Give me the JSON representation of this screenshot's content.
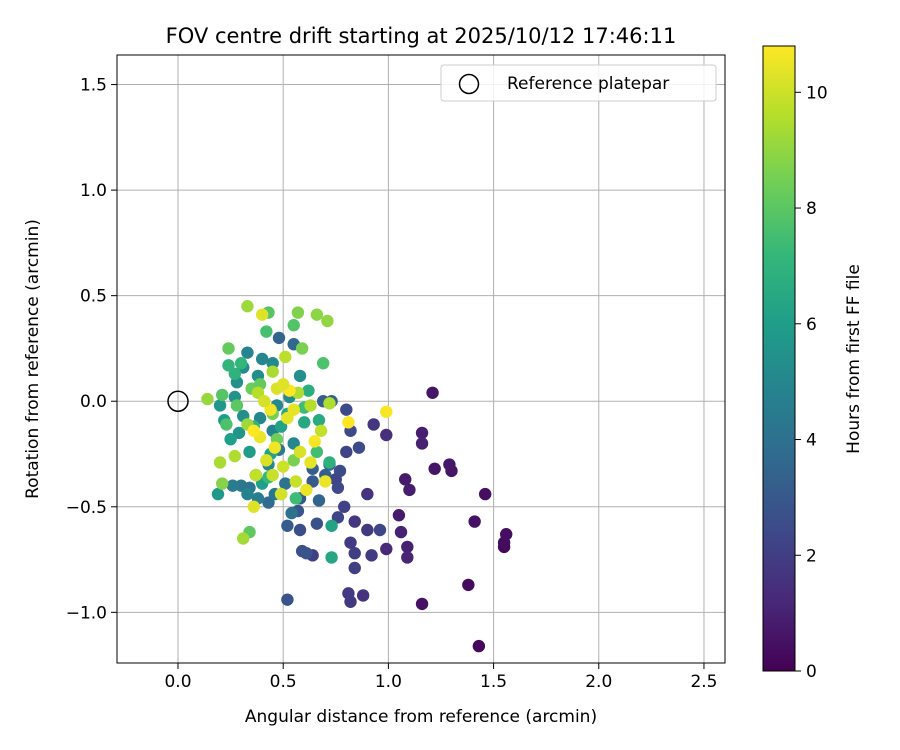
{
  "chart_data": {
    "type": "scatter",
    "title": "FOV centre drift starting at 2025/10/12 17:46:11",
    "xlabel": "Angular distance from reference (arcmin)",
    "ylabel": "Rotation from reference (arcmin)",
    "xlim": [
      -0.29,
      2.6
    ],
    "ylim": [
      -1.24,
      1.64
    ],
    "xticks": [
      0.0,
      0.5,
      1.0,
      1.5,
      2.0,
      2.5
    ],
    "xtick_labels": [
      "0.0",
      "0.5",
      "1.0",
      "1.5",
      "2.0",
      "2.5"
    ],
    "yticks": [
      -1.0,
      -0.5,
      0.0,
      0.5,
      1.0,
      1.5
    ],
    "ytick_labels": [
      "−1.0",
      "−0.5",
      "0.0",
      "0.5",
      "1.0",
      "1.5"
    ],
    "grid": true,
    "legend": {
      "position": "top-right",
      "label": "Reference platepar"
    },
    "reference_point": {
      "x": 0.0,
      "y": 0.0
    },
    "colorbar": {
      "label": "Hours from first FF file",
      "cmap": "viridis",
      "range": [
        0,
        10.8
      ],
      "ticks": [
        0,
        2,
        4,
        6,
        8,
        10
      ],
      "tick_labels": [
        "0",
        "2",
        "4",
        "6",
        "8",
        "10"
      ]
    },
    "colormap_stops": [
      "#440154",
      "#482878",
      "#3e4989",
      "#31688e",
      "#26828e",
      "#1f9e89",
      "#35b779",
      "#6ece58",
      "#b5de2b",
      "#fde725"
    ],
    "points": [
      [
        1.43,
        -1.16,
        0.2
      ],
      [
        1.38,
        -0.87,
        0.3
      ],
      [
        1.16,
        -0.96,
        0.5
      ],
      [
        1.55,
        -0.69,
        0.2
      ],
      [
        1.55,
        -0.67,
        0.3
      ],
      [
        1.56,
        -0.63,
        0.4
      ],
      [
        1.41,
        -0.57,
        0.5
      ],
      [
        1.46,
        -0.44,
        0.4
      ],
      [
        1.3,
        -0.33,
        0.6
      ],
      [
        1.29,
        -0.3,
        0.7
      ],
      [
        1.22,
        -0.32,
        0.6
      ],
      [
        1.21,
        0.04,
        0.6
      ],
      [
        1.16,
        -0.15,
        0.9
      ],
      [
        1.16,
        -0.2,
        1.0
      ],
      [
        1.08,
        -0.37,
        0.8
      ],
      [
        1.1,
        -0.42,
        0.9
      ],
      [
        1.05,
        -0.54,
        0.8
      ],
      [
        1.06,
        -0.62,
        1.0
      ],
      [
        1.09,
        -0.69,
        1.0
      ],
      [
        1.09,
        -0.74,
        1.1
      ],
      [
        0.99,
        -0.7,
        1.3
      ],
      [
        0.99,
        -0.16,
        1.5
      ],
      [
        0.93,
        -0.11,
        1.7
      ],
      [
        0.9,
        -0.44,
        1.6
      ],
      [
        0.88,
        -0.92,
        1.6
      ],
      [
        0.82,
        -0.95,
        1.8
      ],
      [
        0.81,
        -0.91,
        1.9
      ],
      [
        0.84,
        -0.79,
        2.0
      ],
      [
        0.84,
        -0.72,
        2.0
      ],
      [
        0.82,
        -0.67,
        1.9
      ],
      [
        0.92,
        -0.73,
        1.9
      ],
      [
        0.9,
        -0.61,
        1.8
      ],
      [
        0.96,
        -0.61,
        2.3
      ],
      [
        0.84,
        -0.57,
        1.7
      ],
      [
        0.79,
        -0.5,
        2.1
      ],
      [
        0.76,
        -0.55,
        2.3
      ],
      [
        0.8,
        -0.04,
        2.4
      ],
      [
        0.82,
        -0.14,
        2.4
      ],
      [
        0.8,
        -0.24,
        2.2
      ],
      [
        0.86,
        -0.22,
        2.5
      ],
      [
        0.77,
        -0.33,
        2.5
      ],
      [
        0.75,
        -0.37,
        2.3
      ],
      [
        0.76,
        -0.41,
        2.4
      ],
      [
        0.64,
        -0.73,
        2.0
      ],
      [
        0.66,
        -0.58,
        2.7
      ],
      [
        0.59,
        -0.71,
        2.7
      ],
      [
        0.58,
        -0.61,
        2.6
      ],
      [
        0.52,
        -0.94,
        2.8
      ],
      [
        0.61,
        -0.72,
        2.8
      ],
      [
        0.57,
        -0.52,
        2.9
      ],
      [
        0.52,
        -0.59,
        3.1
      ],
      [
        0.58,
        -0.46,
        3.0
      ],
      [
        0.64,
        -0.38,
        3.1
      ],
      [
        0.64,
        -0.32,
        3.3
      ],
      [
        0.7,
        -0.35,
        3.2
      ],
      [
        0.67,
        -0.47,
        3.5
      ],
      [
        0.72,
        -0.3,
        3.6
      ],
      [
        0.69,
        0.0,
        3.2
      ],
      [
        0.73,
        0.0,
        3.4
      ],
      [
        0.48,
        0.3,
        3.5
      ],
      [
        0.55,
        0.27,
        3.6
      ],
      [
        0.43,
        -0.48,
        3.8
      ],
      [
        0.54,
        -0.53,
        4.0
      ],
      [
        0.46,
        -0.44,
        4.2
      ],
      [
        0.51,
        -0.39,
        4.1
      ],
      [
        0.3,
        -0.4,
        4.3
      ],
      [
        0.34,
        -0.41,
        4.2
      ],
      [
        0.38,
        -0.46,
        4.6
      ],
      [
        0.33,
        -0.44,
        4.8
      ],
      [
        0.26,
        -0.4,
        4.5
      ],
      [
        0.37,
        -0.35,
        4.7
      ],
      [
        0.43,
        -0.3,
        4.9
      ],
      [
        0.48,
        -0.23,
        4.5
      ],
      [
        0.55,
        -0.2,
        5.0
      ],
      [
        0.45,
        -0.14,
        4.8
      ],
      [
        0.39,
        -0.08,
        5.0
      ],
      [
        0.47,
        -0.02,
        5.1
      ],
      [
        0.53,
        0.02,
        5.2
      ],
      [
        0.58,
        0.12,
        5.3
      ],
      [
        0.45,
        0.18,
        5.1
      ],
      [
        0.4,
        0.2,
        5.0
      ],
      [
        0.33,
        0.23,
        4.9
      ],
      [
        0.38,
        0.12,
        5.3
      ],
      [
        0.28,
        0.09,
        5.4
      ],
      [
        0.31,
        0.16,
        5.2
      ],
      [
        0.27,
        0.02,
        5.5
      ],
      [
        0.31,
        -0.07,
        5.4
      ],
      [
        0.29,
        -0.15,
        5.6
      ],
      [
        0.19,
        -0.44,
        5.8
      ],
      [
        0.2,
        -0.02,
        5.7
      ],
      [
        0.22,
        -0.09,
        5.9
      ],
      [
        0.25,
        -0.18,
        6.0
      ],
      [
        0.34,
        -0.24,
        5.9
      ],
      [
        0.4,
        -0.39,
        6.1
      ],
      [
        0.44,
        -0.25,
        6.3
      ],
      [
        0.49,
        -0.12,
        6.2
      ],
      [
        0.52,
        -0.06,
        6.4
      ],
      [
        0.6,
        -0.1,
        6.5
      ],
      [
        0.67,
        -0.09,
        6.6
      ],
      [
        0.73,
        -0.59,
        6.2
      ],
      [
        0.73,
        -0.74,
        6.4
      ],
      [
        0.72,
        -0.29,
        6.8
      ],
      [
        0.62,
        0.05,
        6.7
      ],
      [
        0.27,
        0.13,
        6.9
      ],
      [
        0.24,
        0.17,
        7.0
      ],
      [
        0.3,
        0.18,
        7.1
      ],
      [
        0.36,
        -0.12,
        7.0
      ],
      [
        0.43,
        -0.36,
        7.2
      ],
      [
        0.49,
        -0.44,
        7.3
      ],
      [
        0.56,
        -0.46,
        7.4
      ],
      [
        0.66,
        -0.24,
        7.5
      ],
      [
        0.6,
        -0.03,
        7.4
      ],
      [
        0.69,
        0.18,
        7.7
      ],
      [
        0.55,
        0.36,
        7.8
      ],
      [
        0.42,
        0.33,
        7.6
      ],
      [
        0.43,
        0.42,
        7.9
      ],
      [
        0.21,
        0.03,
        7.9
      ],
      [
        0.23,
        -0.11,
        7.7
      ],
      [
        0.28,
        -0.02,
        8.0
      ],
      [
        0.34,
        -0.62,
        8.1
      ],
      [
        0.24,
        0.25,
        8.2
      ],
      [
        0.35,
        0.06,
        8.3
      ],
      [
        0.39,
        0.08,
        8.2
      ],
      [
        0.45,
        -0.06,
        8.5
      ],
      [
        0.47,
        -0.18,
        8.4
      ],
      [
        0.55,
        -0.28,
        8.6
      ],
      [
        0.59,
        0.25,
        8.6
      ],
      [
        0.66,
        0.41,
        8.9
      ],
      [
        0.71,
        0.38,
        9.0
      ],
      [
        0.57,
        0.42,
        8.7
      ],
      [
        0.33,
        0.45,
        9.2
      ],
      [
        0.21,
        -0.39,
        8.8
      ],
      [
        0.31,
        -0.65,
        9.3
      ],
      [
        0.2,
        -0.29,
        9.4
      ],
      [
        0.14,
        0.01,
        9.1
      ],
      [
        0.27,
        -0.26,
        9.5
      ],
      [
        0.33,
        -0.11,
        9.2
      ],
      [
        0.38,
        0.04,
        9.6
      ],
      [
        0.45,
        0.14,
        9.4
      ],
      [
        0.51,
        0.21,
        9.7
      ],
      [
        0.57,
        0.04,
        9.5
      ],
      [
        0.63,
        -0.02,
        9.6
      ],
      [
        0.68,
        -0.14,
        9.8
      ],
      [
        0.72,
        -0.01,
        9.5
      ],
      [
        0.56,
        -0.38,
        9.9
      ],
      [
        0.49,
        -0.44,
        10.1
      ],
      [
        0.42,
        -0.28,
        10.2
      ],
      [
        0.37,
        -0.35,
        9.8
      ],
      [
        0.4,
        0.41,
        10.3
      ],
      [
        0.47,
        0.06,
        10.2
      ],
      [
        0.52,
        -0.08,
        10.4
      ],
      [
        0.46,
        -0.22,
        10.6
      ],
      [
        0.39,
        -0.17,
        10.5
      ],
      [
        0.58,
        -0.24,
        10.6
      ],
      [
        0.65,
        -0.19,
        10.7
      ],
      [
        0.7,
        -0.38,
        10.5
      ],
      [
        0.81,
        -0.1,
        10.8
      ],
      [
        0.99,
        -0.05,
        10.7
      ],
      [
        0.36,
        -0.14,
        10.8
      ],
      [
        0.44,
        -0.04,
        10.6
      ],
      [
        0.53,
        0.05,
        10.8
      ],
      [
        0.36,
        -0.5,
        10.3
      ],
      [
        0.61,
        -0.42,
        10.5
      ],
      [
        0.41,
        0.0,
        10.1
      ],
      [
        0.5,
        -0.31,
        10.0
      ],
      [
        0.55,
        -0.04,
        10.4
      ],
      [
        0.58,
        -0.24,
        10.2
      ],
      [
        0.45,
        -0.35,
        9.9
      ],
      [
        0.63,
        -0.29,
        10.4
      ],
      [
        0.5,
        0.08,
        10.3
      ]
    ]
  }
}
